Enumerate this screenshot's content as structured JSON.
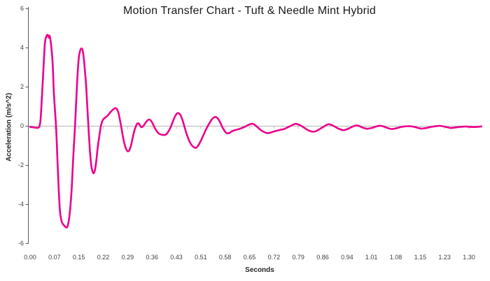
{
  "chart_data": {
    "type": "line",
    "title": "Motion Transfer Chart - Tuft & Needle Mint Hybrid",
    "xlabel": "Seconds",
    "ylabel": "Acceleration (m/s^2)",
    "x_tick_labels": [
      "0.00",
      "0.07",
      "0.15",
      "0.22",
      "0.29",
      "0.36",
      "0.43",
      "0.51",
      "0.58",
      "0.65",
      "0.72",
      "0.79",
      "0.86",
      "0.94",
      "1.01",
      "1.08",
      "1.15",
      "1.23",
      "1.30"
    ],
    "y_tick_labels": [
      "6",
      "4",
      "2",
      "0",
      "-2",
      "-4",
      "-6"
    ],
    "y_tick_values": [
      6,
      4,
      2,
      0,
      -2,
      -4,
      -6
    ],
    "ylim": [
      -6,
      6
    ],
    "xlim": [
      0,
      1.342
    ],
    "grid": false,
    "legend": "none",
    "line_color": "#EC008C",
    "axis_color": "#595959",
    "zero_line_color": "#BFBFBF",
    "tick_label_color": "#3f3f3f",
    "title_color": "#1a1a1a",
    "series": [
      {
        "name": "acceleration",
        "points": [
          [
            0.0,
            -0.05
          ],
          [
            0.01,
            -0.08
          ],
          [
            0.021,
            -0.1
          ],
          [
            0.027,
            -0.05
          ],
          [
            0.031,
            0.3
          ],
          [
            0.035,
            1.4
          ],
          [
            0.04,
            3.0
          ],
          [
            0.044,
            4.2
          ],
          [
            0.048,
            4.55
          ],
          [
            0.052,
            4.65
          ],
          [
            0.056,
            4.5
          ],
          [
            0.058,
            4.6
          ],
          [
            0.062,
            4.2
          ],
          [
            0.067,
            3.2
          ],
          [
            0.071,
            1.6
          ],
          [
            0.077,
            0.0
          ],
          [
            0.081,
            -1.6
          ],
          [
            0.085,
            -3.2
          ],
          [
            0.089,
            -4.4
          ],
          [
            0.094,
            -4.9
          ],
          [
            0.099,
            -5.05
          ],
          [
            0.104,
            -5.15
          ],
          [
            0.108,
            -5.2
          ],
          [
            0.112,
            -5.1
          ],
          [
            0.117,
            -4.6
          ],
          [
            0.123,
            -3.4
          ],
          [
            0.128,
            -1.7
          ],
          [
            0.133,
            -0.2
          ],
          [
            0.137,
            1.2
          ],
          [
            0.141,
            2.6
          ],
          [
            0.145,
            3.5
          ],
          [
            0.149,
            3.85
          ],
          [
            0.153,
            3.95
          ],
          [
            0.157,
            3.8
          ],
          [
            0.161,
            3.2
          ],
          [
            0.166,
            2.2
          ],
          [
            0.17,
            1.0
          ],
          [
            0.174,
            -0.2
          ],
          [
            0.178,
            -1.3
          ],
          [
            0.182,
            -2.05
          ],
          [
            0.186,
            -2.35
          ],
          [
            0.189,
            -2.42
          ],
          [
            0.193,
            -2.25
          ],
          [
            0.197,
            -1.75
          ],
          [
            0.201,
            -1.1
          ],
          [
            0.206,
            -0.5
          ],
          [
            0.21,
            -0.05
          ],
          [
            0.215,
            0.25
          ],
          [
            0.22,
            0.38
          ],
          [
            0.226,
            0.45
          ],
          [
            0.232,
            0.55
          ],
          [
            0.239,
            0.7
          ],
          [
            0.246,
            0.82
          ],
          [
            0.252,
            0.9
          ],
          [
            0.257,
            0.88
          ],
          [
            0.262,
            0.7
          ],
          [
            0.266,
            0.4
          ],
          [
            0.271,
            -0.05
          ],
          [
            0.276,
            -0.55
          ],
          [
            0.281,
            -0.95
          ],
          [
            0.286,
            -1.2
          ],
          [
            0.29,
            -1.3
          ],
          [
            0.295,
            -1.25
          ],
          [
            0.3,
            -1.0
          ],
          [
            0.305,
            -0.6
          ],
          [
            0.31,
            -0.25
          ],
          [
            0.315,
            0.0
          ],
          [
            0.319,
            0.12
          ],
          [
            0.324,
            0.1
          ],
          [
            0.328,
            -0.02
          ],
          [
            0.332,
            -0.07
          ],
          [
            0.337,
            0.0
          ],
          [
            0.343,
            0.15
          ],
          [
            0.349,
            0.28
          ],
          [
            0.354,
            0.32
          ],
          [
            0.359,
            0.27
          ],
          [
            0.365,
            0.1
          ],
          [
            0.372,
            -0.15
          ],
          [
            0.379,
            -0.33
          ],
          [
            0.386,
            -0.43
          ],
          [
            0.394,
            -0.46
          ],
          [
            0.402,
            -0.46
          ],
          [
            0.409,
            -0.35
          ],
          [
            0.417,
            -0.1
          ],
          [
            0.424,
            0.2
          ],
          [
            0.43,
            0.45
          ],
          [
            0.436,
            0.62
          ],
          [
            0.441,
            0.65
          ],
          [
            0.447,
            0.55
          ],
          [
            0.453,
            0.3
          ],
          [
            0.459,
            -0.05
          ],
          [
            0.466,
            -0.45
          ],
          [
            0.474,
            -0.8
          ],
          [
            0.481,
            -1.0
          ],
          [
            0.488,
            -1.1
          ],
          [
            0.494,
            -1.12
          ],
          [
            0.5,
            -1.0
          ],
          [
            0.508,
            -0.75
          ],
          [
            0.516,
            -0.45
          ],
          [
            0.524,
            -0.15
          ],
          [
            0.532,
            0.1
          ],
          [
            0.539,
            0.3
          ],
          [
            0.546,
            0.42
          ],
          [
            0.552,
            0.45
          ],
          [
            0.558,
            0.38
          ],
          [
            0.565,
            0.18
          ],
          [
            0.572,
            -0.08
          ],
          [
            0.579,
            -0.28
          ],
          [
            0.585,
            -0.38
          ],
          [
            0.592,
            -0.37
          ],
          [
            0.6,
            -0.28
          ],
          [
            0.609,
            -0.22
          ],
          [
            0.618,
            -0.18
          ],
          [
            0.628,
            -0.12
          ],
          [
            0.638,
            -0.05
          ],
          [
            0.647,
            0.03
          ],
          [
            0.655,
            0.09
          ],
          [
            0.663,
            0.1
          ],
          [
            0.67,
            0.02
          ],
          [
            0.678,
            -0.1
          ],
          [
            0.686,
            -0.22
          ],
          [
            0.694,
            -0.3
          ],
          [
            0.702,
            -0.36
          ],
          [
            0.71,
            -0.37
          ],
          [
            0.718,
            -0.33
          ],
          [
            0.727,
            -0.28
          ],
          [
            0.736,
            -0.24
          ],
          [
            0.745,
            -0.2
          ],
          [
            0.754,
            -0.17
          ],
          [
            0.763,
            -0.1
          ],
          [
            0.772,
            -0.03
          ],
          [
            0.781,
            0.05
          ],
          [
            0.789,
            0.1
          ],
          [
            0.797,
            0.07
          ],
          [
            0.806,
            0.0
          ],
          [
            0.815,
            -0.1
          ],
          [
            0.824,
            -0.2
          ],
          [
            0.833,
            -0.27
          ],
          [
            0.841,
            -0.3
          ],
          [
            0.849,
            -0.28
          ],
          [
            0.858,
            -0.2
          ],
          [
            0.867,
            -0.1
          ],
          [
            0.875,
            -0.02
          ],
          [
            0.883,
            0.06
          ],
          [
            0.89,
            0.08
          ],
          [
            0.898,
            0.03
          ],
          [
            0.906,
            -0.04
          ],
          [
            0.914,
            -0.12
          ],
          [
            0.922,
            -0.18
          ],
          [
            0.93,
            -0.22
          ],
          [
            0.938,
            -0.2
          ],
          [
            0.947,
            -0.14
          ],
          [
            0.955,
            -0.07
          ],
          [
            0.963,
            -0.01
          ],
          [
            0.97,
            0.02
          ],
          [
            0.978,
            -0.01
          ],
          [
            0.986,
            -0.07
          ],
          [
            0.994,
            -0.12
          ],
          [
            1.002,
            -0.15
          ],
          [
            1.01,
            -0.13
          ],
          [
            1.018,
            -0.1
          ],
          [
            1.026,
            -0.05
          ],
          [
            1.034,
            -0.01
          ],
          [
            1.042,
            0.0
          ],
          [
            1.05,
            -0.03
          ],
          [
            1.058,
            -0.08
          ],
          [
            1.066,
            -0.13
          ],
          [
            1.074,
            -0.16
          ],
          [
            1.082,
            -0.15
          ],
          [
            1.09,
            -0.12
          ],
          [
            1.098,
            -0.08
          ],
          [
            1.106,
            -0.05
          ],
          [
            1.114,
            -0.03
          ],
          [
            1.122,
            -0.02
          ],
          [
            1.13,
            -0.02
          ],
          [
            1.138,
            -0.04
          ],
          [
            1.146,
            -0.07
          ],
          [
            1.154,
            -0.11
          ],
          [
            1.162,
            -0.14
          ],
          [
            1.17,
            -0.13
          ],
          [
            1.178,
            -0.11
          ],
          [
            1.186,
            -0.08
          ],
          [
            1.194,
            -0.05
          ],
          [
            1.202,
            -0.03
          ],
          [
            1.21,
            -0.01
          ],
          [
            1.218,
            0.0
          ],
          [
            1.226,
            -0.02
          ],
          [
            1.234,
            -0.05
          ],
          [
            1.242,
            -0.08
          ],
          [
            1.25,
            -0.11
          ],
          [
            1.258,
            -0.1
          ],
          [
            1.266,
            -0.08
          ],
          [
            1.274,
            -0.06
          ],
          [
            1.282,
            -0.05
          ],
          [
            1.29,
            -0.04
          ],
          [
            1.298,
            -0.04
          ],
          [
            1.306,
            -0.05
          ],
          [
            1.314,
            -0.06
          ],
          [
            1.322,
            -0.06
          ],
          [
            1.33,
            -0.05
          ],
          [
            1.338,
            -0.04
          ],
          [
            1.342,
            -0.03
          ]
        ]
      }
    ]
  }
}
